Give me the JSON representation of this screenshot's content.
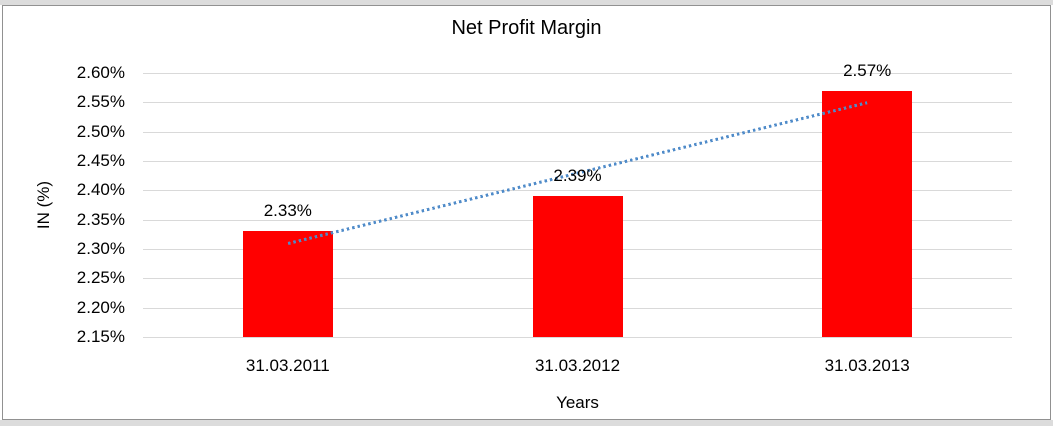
{
  "chart_data": {
    "type": "bar",
    "title": "Net Profit Margin",
    "xlabel": "Years",
    "ylabel": "IN (%)",
    "categories": [
      "31.03.2011",
      "31.03.2012",
      "31.03.2013"
    ],
    "values": [
      2.33,
      2.39,
      2.57
    ],
    "value_labels": [
      "2.33%",
      "2.39%",
      "2.57%"
    ],
    "ylim": [
      2.15,
      2.6
    ],
    "ytick_step": 0.05,
    "ytick_labels": [
      "2.60%",
      "2.55%",
      "2.50%",
      "2.45%",
      "2.40%",
      "2.35%",
      "2.30%",
      "2.25%",
      "2.20%",
      "2.15%"
    ],
    "grid": true,
    "legend": "none",
    "bar_color": "#FF0000",
    "gridline_color": "#d9d9d9",
    "trendline": {
      "type": "linear",
      "style": "dotted",
      "color": "#4F8BC9",
      "points": [
        {
          "category_index": 0,
          "value": 2.31
        },
        {
          "category_index": 2,
          "value": 2.55
        }
      ]
    }
  }
}
